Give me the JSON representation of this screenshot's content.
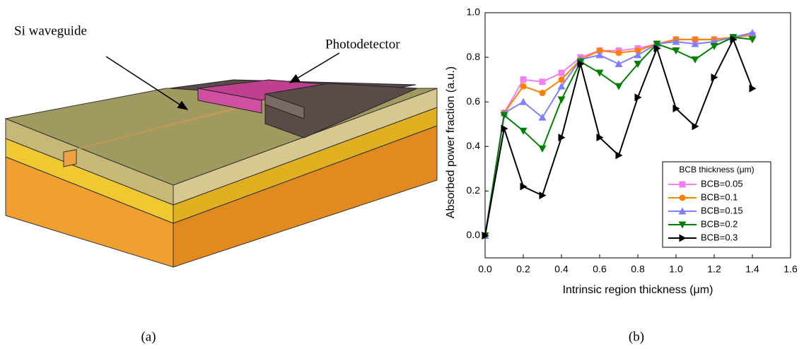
{
  "diagram": {
    "labels": [
      "Si waveguide",
      "Photodetector"
    ],
    "panels": [
      "(a)",
      "(b)"
    ]
  },
  "chart_data": {
    "type": "line",
    "x_label": "Intrinsic region thickness (μm)",
    "y_label": "Absorbed power fraction (a.u.)",
    "x": [
      0,
      0.1,
      0.2,
      0.3,
      0.4,
      0.5,
      0.6,
      0.7,
      0.8,
      0.9,
      1.0,
      1.1,
      1.2,
      1.3,
      1.4
    ],
    "series": [
      {
        "name": "BCB=0.05",
        "color": "#f080f0",
        "marker": "square",
        "values": [
          0,
          0.55,
          0.7,
          0.69,
          0.73,
          0.8,
          0.83,
          0.83,
          0.84,
          0.86,
          0.88,
          0.88,
          0.88,
          0.89,
          0.9
        ]
      },
      {
        "name": "BCB=0.1",
        "color": "#ff8000",
        "marker": "circle",
        "values": [
          0,
          0.55,
          0.67,
          0.64,
          0.7,
          0.79,
          0.83,
          0.82,
          0.83,
          0.86,
          0.88,
          0.88,
          0.88,
          0.89,
          0.9
        ]
      },
      {
        "name": "BCB=0.15",
        "color": "#8080ff",
        "marker": "triangle-up",
        "values": [
          0,
          0.55,
          0.6,
          0.53,
          0.67,
          0.79,
          0.81,
          0.77,
          0.81,
          0.86,
          0.87,
          0.86,
          0.87,
          0.89,
          0.91
        ]
      },
      {
        "name": "BCB=0.2",
        "color": "#008000",
        "marker": "triangle-down",
        "values": [
          0,
          0.54,
          0.47,
          0.39,
          0.61,
          0.78,
          0.73,
          0.67,
          0.77,
          0.86,
          0.83,
          0.79,
          0.85,
          0.89,
          0.88
        ]
      },
      {
        "name": "BCB=0.3",
        "color": "#000000",
        "marker": "triangle-right",
        "values": [
          0,
          0.48,
          0.22,
          0.18,
          0.44,
          0.77,
          0.44,
          0.36,
          0.62,
          0.84,
          0.57,
          0.49,
          0.71,
          0.88,
          0.66
        ]
      }
    ],
    "legend_title": "BCB thickness (μm)",
    "legend_position": "lower right",
    "xlim": [
      0,
      1.6
    ],
    "xticks": [
      {
        "value": 0,
        "label": "0.0"
      },
      0.2,
      0.4,
      0.6,
      0.8,
      {
        "value": 1,
        "label": "1.0"
      },
      1.2,
      1.4,
      1.6
    ],
    "ylim": [
      -0.1,
      1
    ],
    "yticks": [
      {
        "value": 0,
        "label": "0.0"
      },
      0.2,
      0.4,
      0.6,
      0.8,
      {
        "value": 1,
        "label": "1.0"
      }
    ],
    "grid": false
  }
}
